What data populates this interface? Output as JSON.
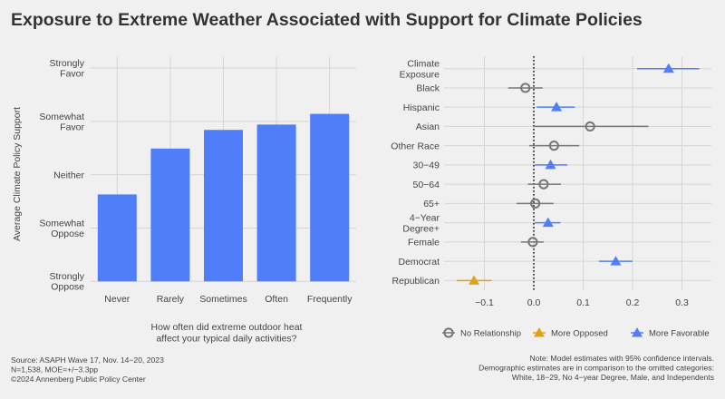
{
  "title": "Exposure to Extreme Weather Associated with Support for Climate Policies",
  "colors": {
    "background": "#f0f0f0",
    "bar": "#4f7ef8",
    "favorable": "#4f7ef8",
    "opposed": "#e0a21a",
    "none": "#777777",
    "grid": "#d6d6d6"
  },
  "chart_data": [
    {
      "type": "bar",
      "ylabel": "Average Climate Policy Support",
      "xlabel_lines": [
        "How often did extreme outdoor heat",
        "affect your typical daily activities?"
      ],
      "categories": [
        "Never",
        "Rarely",
        "Sometimes",
        "Often",
        "Frequently"
      ],
      "values": [
        2.63,
        3.49,
        3.84,
        3.94,
        4.14
      ],
      "ylim": [
        1,
        5
      ],
      "yticks": [
        {
          "value": 1,
          "lines": [
            "Strongly",
            "Oppose"
          ]
        },
        {
          "value": 2,
          "lines": [
            "Somewhat",
            "Oppose"
          ]
        },
        {
          "value": 3,
          "lines": [
            "Neither"
          ]
        },
        {
          "value": 4,
          "lines": [
            "Somewhat",
            "Favor"
          ]
        },
        {
          "value": 5,
          "lines": [
            "Strongly",
            "Favor"
          ]
        }
      ],
      "grid": true
    },
    {
      "type": "scatter",
      "subtype": "coefficient-plot",
      "xlim": [
        -0.17,
        0.37
      ],
      "xticks": [
        -0.1,
        0.0,
        0.1,
        0.2,
        0.3
      ],
      "xtick_labels": [
        "−0.1",
        "0.0",
        "0.1",
        "0.2",
        "0.3"
      ],
      "reference_line": 0,
      "legend_position": "bottom",
      "legend": [
        {
          "key": "none",
          "label": "No Relationship",
          "marker": "circle-open"
        },
        {
          "key": "opposed",
          "label": "More Opposed",
          "marker": "triangle"
        },
        {
          "key": "favorable",
          "label": "More Favorable",
          "marker": "triangle"
        }
      ],
      "rows": [
        {
          "lines": [
            "Climate",
            "Exposure"
          ],
          "estimate": 0.273,
          "low": 0.209,
          "high": 0.335,
          "group": "favorable"
        },
        {
          "lines": [
            "Black"
          ],
          "estimate": -0.017,
          "low": -0.052,
          "high": 0.018,
          "group": "none"
        },
        {
          "lines": [
            "Hispanic"
          ],
          "estimate": 0.046,
          "low": 0.006,
          "high": 0.083,
          "group": "favorable"
        },
        {
          "lines": [
            "Asian"
          ],
          "estimate": 0.114,
          "low": -0.002,
          "high": 0.232,
          "group": "none"
        },
        {
          "lines": [
            "Other Race"
          ],
          "estimate": 0.041,
          "low": -0.009,
          "high": 0.092,
          "group": "none"
        },
        {
          "lines": [
            "30−49"
          ],
          "estimate": 0.034,
          "low": 0.002,
          "high": 0.068,
          "group": "favorable"
        },
        {
          "lines": [
            "50−64"
          ],
          "estimate": 0.02,
          "low": -0.012,
          "high": 0.055,
          "group": "none"
        },
        {
          "lines": [
            "65+"
          ],
          "estimate": 0.003,
          "low": -0.035,
          "high": 0.04,
          "group": "none"
        },
        {
          "lines": [
            "4−Year",
            "Degree+"
          ],
          "estimate": 0.029,
          "low": 0.002,
          "high": 0.054,
          "group": "favorable"
        },
        {
          "lines": [
            "Female"
          ],
          "estimate": -0.002,
          "low": -0.026,
          "high": 0.02,
          "group": "none"
        },
        {
          "lines": [
            "Democrat"
          ],
          "estimate": 0.166,
          "low": 0.132,
          "high": 0.2,
          "group": "favorable"
        },
        {
          "lines": [
            "Republican"
          ],
          "estimate": -0.121,
          "low": -0.156,
          "high": -0.085,
          "group": "opposed"
        }
      ]
    }
  ],
  "footer": {
    "source": [
      "Source: ASAPH Wave 17, Nov. 14−20, 2023",
      "N=1,538, MOE=+/−3.3pp",
      "©2024 Annenberg Public Policy Center"
    ],
    "note": [
      "Note: Model estimates with 95% confidence intervals.",
      "Demographic estimates are in comparison to the omitted categories:",
      "White, 18−29, No 4−year Degree, Male, and Independents"
    ]
  }
}
